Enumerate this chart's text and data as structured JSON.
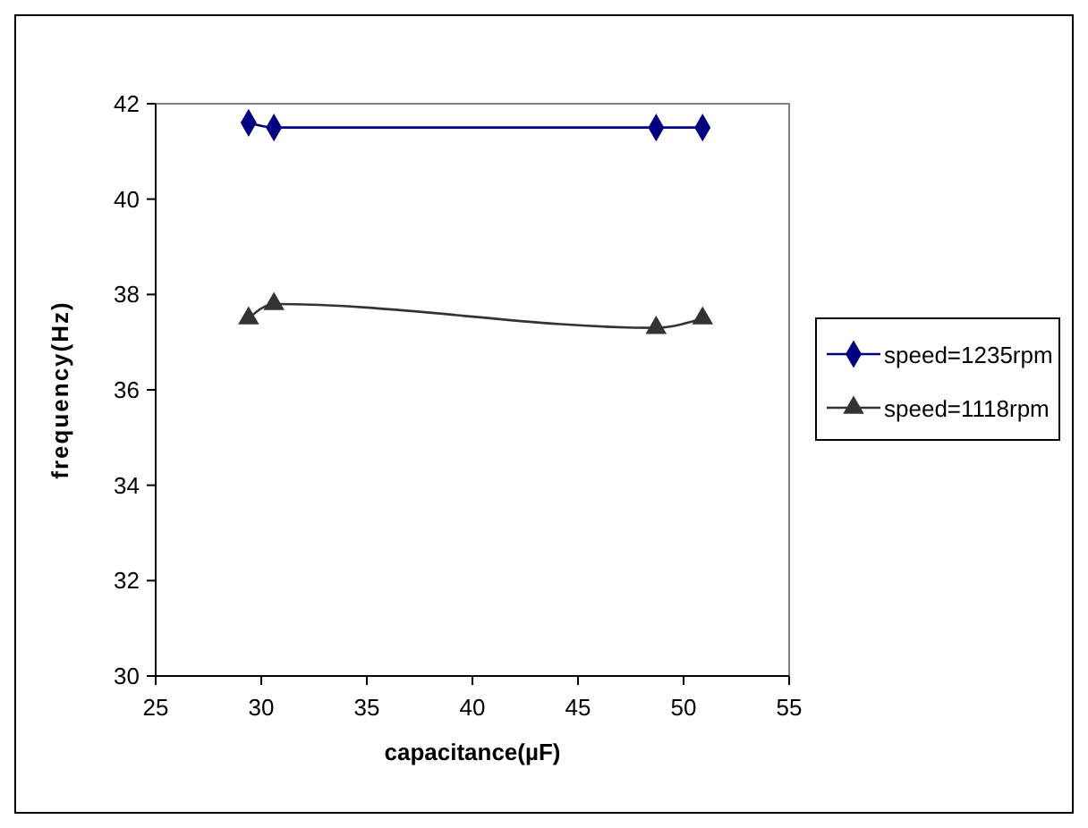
{
  "chart_data": {
    "type": "line",
    "xlabel": "capacitance(µF)",
    "ylabel": "frequency(Hz)",
    "xlim": [
      25,
      55
    ],
    "xticks": [
      25,
      30,
      35,
      40,
      45,
      50,
      55
    ],
    "ylim": [
      30,
      42
    ],
    "yticks": [
      30,
      32,
      34,
      36,
      38,
      40,
      42
    ],
    "x": [
      29.4,
      30.6,
      48.7,
      50.9
    ],
    "series": [
      {
        "name": "speed=1235rpm",
        "color": "#000080",
        "marker": "diamond",
        "values": [
          41.6,
          41.5,
          41.5,
          41.5
        ]
      },
      {
        "name": "speed=1118rpm",
        "color": "#333333",
        "marker": "triangle",
        "values": [
          37.5,
          37.8,
          37.3,
          37.5
        ]
      }
    ],
    "grid": false,
    "legend": "right",
    "line_style": "solid"
  }
}
